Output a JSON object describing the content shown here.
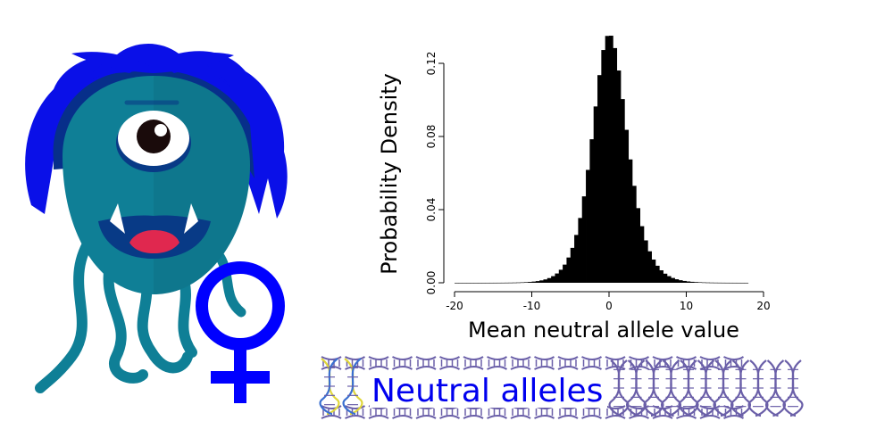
{
  "banner": {
    "label": "Neutral alleles",
    "text_color": "#0000ee"
  },
  "colors": {
    "monster_body": "#0f7f96",
    "monster_hair": "#0a10e8",
    "monster_hair_dark": "#072f8a",
    "monster_mouth": "#083a86",
    "monster_tongue": "#e0284f",
    "female_symbol": "#0000ff",
    "dna_strand": "#6a5fa8",
    "dna_highlight": "#e0d63a",
    "bars": "#000000"
  },
  "icons": [
    "cyclops-monster-icon",
    "female-symbol-icon",
    "dna-icon"
  ],
  "chart_data": {
    "type": "bar",
    "title": "",
    "xlabel": "Mean neutral allele value",
    "ylabel": "Probability Density",
    "xlim": [
      -20,
      20
    ],
    "ylim": [
      0,
      0.14
    ],
    "xticks": [
      -20,
      -10,
      0,
      10,
      20
    ],
    "yticks": [
      0.0,
      0.04,
      0.08,
      0.12
    ],
    "ytick_labels": [
      "0.00",
      "0.04",
      "0.08",
      "0.12"
    ],
    "xtick_labels": [
      "-20",
      "-10",
      "0",
      "10",
      "20"
    ],
    "bin_width": 0.5,
    "bin_start": -20,
    "bin_end": 18,
    "center": 0,
    "peak": 0.136,
    "left_scale": 2.9,
    "right_scale": 3.1,
    "grid": false
  }
}
